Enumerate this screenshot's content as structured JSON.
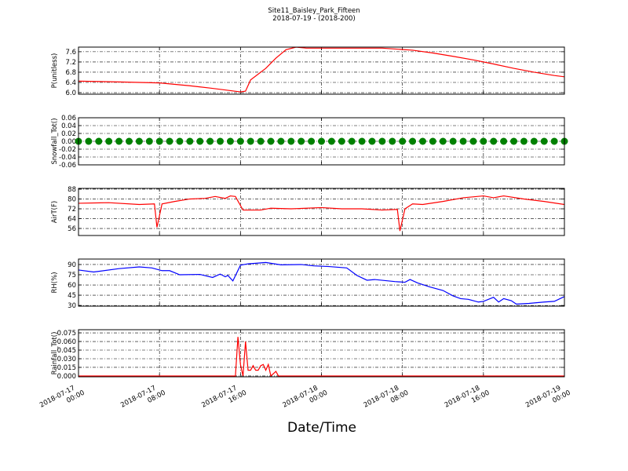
{
  "chart_data": [
    {
      "type": "line",
      "title": "Site11_Baisley_Park_Fifteen",
      "subtitle": "2018-07-19 - (2018-200)",
      "ylabel": "P(unitless)",
      "color": "#ff0000",
      "grid": true,
      "xlim": [
        "2018-07-17 00:00",
        "2018-07-19 00:00"
      ],
      "ylim": [
        5.94,
        7.78
      ],
      "yticks": [
        {
          "value": 6,
          "label": "6.0"
        },
        6.4,
        6.8,
        7.2,
        7.6
      ],
      "x": [
        "2018-07-17 00:00",
        "2018-07-17 04:00",
        "2018-07-17 08:00",
        "2018-07-17 11:00",
        "2018-07-17 13:00",
        "2018-07-17 15:00",
        "2018-07-17 16:00",
        "2018-07-17 16:30",
        "2018-07-17 17:00",
        "2018-07-17 18:30",
        "2018-07-17 19:30",
        "2018-07-17 20:30",
        "2018-07-17 21:30",
        "2018-07-17 22:30",
        "2018-07-18 06:00",
        "2018-07-18 09:00",
        "2018-07-18 11:00",
        "2018-07-18 13:00",
        "2018-07-18 15:00",
        "2018-07-18 17:00",
        "2018-07-18 19:00",
        "2018-07-18 21:00",
        "2018-07-18 23:00",
        "2018-07-19 00:00"
      ],
      "values": [
        6.45,
        6.42,
        6.38,
        6.27,
        6.18,
        6.08,
        6.03,
        6.06,
        6.5,
        6.95,
        7.35,
        7.68,
        7.78,
        7.74,
        7.74,
        7.66,
        7.55,
        7.42,
        7.28,
        7.12,
        6.95,
        6.8,
        6.67,
        6.62
      ]
    },
    {
      "type": "scatter",
      "ylabel": "Snowfall_Tot()",
      "color": "#008000",
      "grid": true,
      "xlim": [
        "2018-07-17 00:00",
        "2018-07-19 00:00"
      ],
      "ylim": [
        -0.06,
        0.06
      ],
      "yticks": [
        -0.06,
        -0.04,
        -0.02,
        {
          "value": 0,
          "label": "0.00"
        },
        0.02,
        0.04,
        0.06
      ],
      "x": [
        "2018-07-17 00:00",
        "2018-07-17 01:00",
        "2018-07-17 02:00",
        "2018-07-17 03:00",
        "2018-07-17 04:00",
        "2018-07-17 05:00",
        "2018-07-17 06:00",
        "2018-07-17 07:00",
        "2018-07-17 08:00",
        "2018-07-17 09:00",
        "2018-07-17 10:00",
        "2018-07-17 11:00",
        "2018-07-17 12:00",
        "2018-07-17 13:00",
        "2018-07-17 14:00",
        "2018-07-17 15:00",
        "2018-07-17 16:00",
        "2018-07-17 17:00",
        "2018-07-17 18:00",
        "2018-07-17 19:00",
        "2018-07-17 20:00",
        "2018-07-17 21:00",
        "2018-07-17 22:00",
        "2018-07-17 23:00",
        "2018-07-18 00:00",
        "2018-07-18 01:00",
        "2018-07-18 02:00",
        "2018-07-18 03:00",
        "2018-07-18 04:00",
        "2018-07-18 05:00",
        "2018-07-18 06:00",
        "2018-07-18 07:00",
        "2018-07-18 08:00",
        "2018-07-18 09:00",
        "2018-07-18 10:00",
        "2018-07-18 11:00",
        "2018-07-18 12:00",
        "2018-07-18 13:00",
        "2018-07-18 14:00",
        "2018-07-18 15:00",
        "2018-07-18 16:00",
        "2018-07-18 17:00",
        "2018-07-18 18:00",
        "2018-07-18 19:00",
        "2018-07-18 20:00",
        "2018-07-18 21:00",
        "2018-07-18 22:00",
        "2018-07-18 23:00",
        "2018-07-19 00:00"
      ],
      "values": [
        0,
        0,
        0,
        0,
        0,
        0,
        0,
        0,
        0,
        0,
        0,
        0,
        0,
        0,
        0,
        0,
        0,
        0,
        0,
        0,
        0,
        0,
        0,
        0,
        0,
        0,
        0,
        0,
        0,
        0,
        0,
        0,
        0,
        0,
        0,
        0,
        0,
        0,
        0,
        0,
        0,
        0,
        0,
        0,
        0,
        0,
        0,
        0,
        0
      ]
    },
    {
      "type": "line",
      "ylabel": "AirT(F)",
      "color": "#ff0000",
      "grid": true,
      "xlim": [
        "2018-07-17 00:00",
        "2018-07-19 00:00"
      ],
      "ylim": [
        50.3,
        88.6
      ],
      "yticks": [
        56,
        64,
        72,
        80,
        88
      ],
      "x": [
        "2018-07-17 00:00",
        "2018-07-17 03:00",
        "2018-07-17 06:00",
        "2018-07-17 07:30",
        "2018-07-17 07:45",
        "2018-07-17 08:15",
        "2018-07-17 09:30",
        "2018-07-17 11:00",
        "2018-07-17 12:30",
        "2018-07-17 13:30",
        "2018-07-17 14:30",
        "2018-07-17 15:00",
        "2018-07-17 15:30",
        "2018-07-17 16:15",
        "2018-07-17 18:00",
        "2018-07-17 19:00",
        "2018-07-17 21:00",
        "2018-07-18 00:00",
        "2018-07-18 02:00",
        "2018-07-18 04:00",
        "2018-07-18 06:00",
        "2018-07-18 07:30",
        "2018-07-18 07:45",
        "2018-07-18 08:15",
        "2018-07-18 09:00",
        "2018-07-18 10:00",
        "2018-07-18 12:00",
        "2018-07-18 14:00",
        "2018-07-18 16:00",
        "2018-07-18 17:00",
        "2018-07-18 18:00",
        "2018-07-18 20:00",
        "2018-07-18 22:00",
        "2018-07-19 00:00"
      ],
      "values": [
        76.5,
        77,
        75.5,
        76,
        57,
        76,
        78,
        80,
        80.5,
        82,
        80.5,
        82.5,
        82,
        71,
        71,
        72.5,
        72,
        73,
        72,
        72,
        71,
        71.5,
        54,
        72,
        76,
        75.5,
        78,
        81,
        82.5,
        81,
        82.5,
        80,
        78,
        75.5
      ]
    },
    {
      "type": "line",
      "ylabel": "RH(%)",
      "color": "#0000ff",
      "grid": true,
      "xlim": [
        "2018-07-17 00:00",
        "2018-07-19 00:00"
      ],
      "ylim": [
        29,
        98
      ],
      "yticks": [
        30,
        45,
        60,
        75,
        90
      ],
      "x": [
        "2018-07-17 00:00",
        "2018-07-17 01:30",
        "2018-07-17 04:00",
        "2018-07-17 06:00",
        "2018-07-17 07:15",
        "2018-07-17 08:15",
        "2018-07-17 09:00",
        "2018-07-17 10:00",
        "2018-07-17 12:00",
        "2018-07-17 13:15",
        "2018-07-17 14:00",
        "2018-07-17 14:30",
        "2018-07-17 14:45",
        "2018-07-17 15:15",
        "2018-07-17 16:00",
        "2018-07-17 16:45",
        "2018-07-17 18:30",
        "2018-07-17 20:00",
        "2018-07-17 22:00",
        "2018-07-17 23:15",
        "2018-07-18 00:45",
        "2018-07-18 02:30",
        "2018-07-18 03:30",
        "2018-07-18 04:30",
        "2018-07-18 05:15",
        "2018-07-18 07:15",
        "2018-07-18 08:15",
        "2018-07-18 08:45",
        "2018-07-18 09:30",
        "2018-07-18 10:45",
        "2018-07-18 12:00",
        "2018-07-18 13:00",
        "2018-07-18 13:45",
        "2018-07-18 14:30",
        "2018-07-18 15:30",
        "2018-07-18 16:00",
        "2018-07-18 17:00",
        "2018-07-18 17:30",
        "2018-07-18 18:00",
        "2018-07-18 18:45",
        "2018-07-18 19:15",
        "2018-07-18 20:30",
        "2018-07-18 22:00",
        "2018-07-18 23:00",
        "2018-07-19 00:00"
      ],
      "values": [
        82,
        79,
        84,
        86.5,
        85,
        81,
        81,
        75,
        75.5,
        71,
        76,
        72,
        74,
        66,
        89,
        91,
        93,
        89.5,
        90,
        88,
        87,
        85,
        74,
        67,
        68,
        65,
        64,
        68,
        63,
        57,
        52,
        44,
        40,
        39,
        35,
        36,
        42,
        35,
        40,
        37,
        32,
        33,
        35,
        36,
        43
      ]
    },
    {
      "type": "line",
      "ylabel": "Rainfall_Tot()",
      "xlabel": "Date/Time",
      "color": "#ff0000",
      "grid": true,
      "xlim": [
        "2018-07-17 00:00",
        "2018-07-19 00:00"
      ],
      "xticks": [
        "2018-07-17 00:00",
        "2018-07-17 08:00",
        "2018-07-17 16:00",
        "2018-07-18 00:00",
        "2018-07-18 08:00",
        "2018-07-18 16:00",
        "2018-07-19 00:00"
      ],
      "ylim": [
        -0.0014,
        0.0805
      ],
      "yticks": [
        {
          "value": 0,
          "label": "0.000"
        },
        0.015,
        {
          "value": 0.03,
          "label": "0.030"
        },
        0.045,
        {
          "value": 0.06,
          "label": "0.060"
        },
        0.075
      ],
      "x": [
        "2018-07-17 00:00",
        "2018-07-17 15:30",
        "2018-07-17 15:45",
        "2018-07-17 16:00",
        "2018-07-17 16:15",
        "2018-07-17 16:30",
        "2018-07-17 16:45",
        "2018-07-17 17:00",
        "2018-07-17 17:15",
        "2018-07-17 17:30",
        "2018-07-17 17:45",
        "2018-07-17 18:00",
        "2018-07-17 18:15",
        "2018-07-17 18:30",
        "2018-07-17 18:45",
        "2018-07-17 19:00",
        "2018-07-17 19:30",
        "2018-07-17 19:45",
        "2018-07-19 00:00"
      ],
      "values": [
        0,
        0,
        0.068,
        0.02,
        0,
        0.06,
        0.01,
        0.01,
        0.018,
        0.01,
        0.01,
        0.018,
        0.02,
        0.01,
        0.02,
        0,
        0.008,
        0,
        0
      ]
    }
  ]
}
